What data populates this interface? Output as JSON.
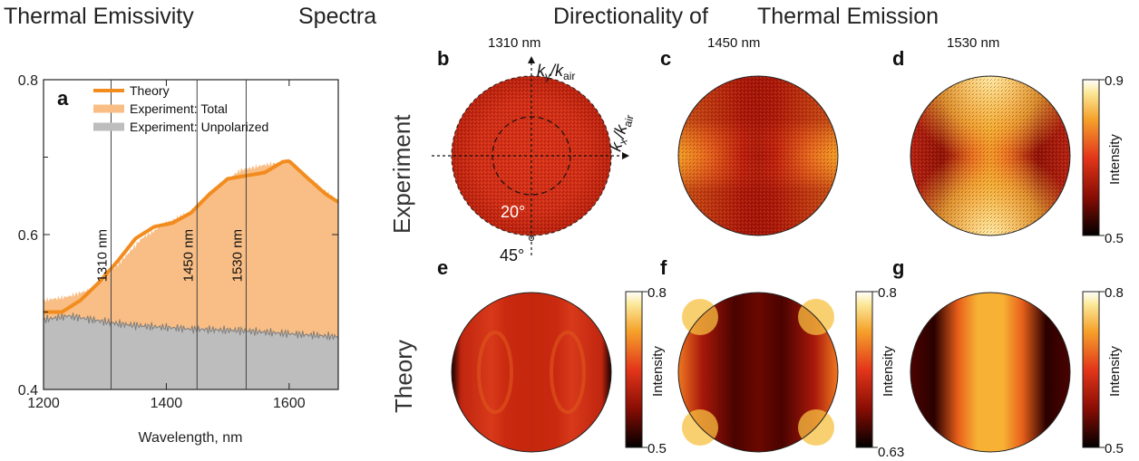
{
  "headers": {
    "left_a": "Thermal Emissivity",
    "left_b": "Spectra",
    "right_a": "Directionality of",
    "right_b": "Thermal Emission"
  },
  "row_labels": {
    "experiment": "Experiment",
    "theory": "Theory"
  },
  "panels": {
    "a": "a",
    "b": "b",
    "c": "c",
    "d": "d",
    "e": "e",
    "f": "f",
    "g": "g"
  },
  "wavelength_labels": {
    "b": "1310 nm",
    "c": "1450 nm",
    "d": "1530 nm"
  },
  "polar_annotations": {
    "ky": "k",
    "ky_sub": "y",
    "kx": "k",
    "kx_sub": "x",
    "over": "/k",
    "air": "air",
    "angle_inner": "20°",
    "angle_outer": "45°"
  },
  "colorbars": [
    {
      "id": "d",
      "max": "0.9",
      "min": "0.5",
      "label": "Intensity"
    },
    {
      "id": "e",
      "max": "0.8",
      "min": "0.5",
      "label": "Intensity"
    },
    {
      "id": "f",
      "max": "0.8",
      "min": "0.63",
      "label": "Intensity"
    },
    {
      "id": "g",
      "max": "0.8",
      "min": "0.5",
      "label": "Intensity"
    }
  ],
  "chart_data": {
    "type": "area",
    "xlabel": "Wavelength, nm",
    "ylabel": "",
    "xlim": [
      1200,
      1680
    ],
    "ylim": [
      0.4,
      0.8
    ],
    "x_ticks": [
      1200,
      1400,
      1600
    ],
    "y_ticks": [
      0.4,
      0.6,
      0.8
    ],
    "x_tick_labels": [
      "1200",
      "1400",
      "1600"
    ],
    "y_tick_labels": [
      "0.4",
      "0.6",
      "0.8"
    ],
    "grid": false,
    "legend_position": "top-left",
    "vertical_markers": [
      {
        "x": 1310,
        "label": "1310 nm"
      },
      {
        "x": 1450,
        "label": "1450 nm"
      },
      {
        "x": 1530,
        "label": "1530 nm"
      }
    ],
    "series": [
      {
        "name": "Theory",
        "color": "#f28c1e",
        "kind": "line",
        "x": [
          1200,
          1230,
          1260,
          1290,
          1320,
          1350,
          1380,
          1410,
          1440,
          1470,
          1500,
          1530,
          1560,
          1590,
          1600,
          1630,
          1660,
          1680
        ],
        "y": [
          0.5,
          0.5,
          0.515,
          0.538,
          0.565,
          0.595,
          0.61,
          0.615,
          0.628,
          0.652,
          0.672,
          0.676,
          0.68,
          0.694,
          0.695,
          0.673,
          0.652,
          0.642
        ]
      },
      {
        "name": "Experiment: Total",
        "color": "#f9be85",
        "kind": "area",
        "x": [
          1200,
          1240,
          1280,
          1320,
          1360,
          1400,
          1440,
          1480,
          1520,
          1560,
          1600,
          1640,
          1680
        ],
        "y": [
          0.515,
          0.52,
          0.53,
          0.56,
          0.595,
          0.615,
          0.63,
          0.66,
          0.683,
          0.69,
          0.695,
          0.668,
          0.643
        ]
      },
      {
        "name": "Experiment: Unpolarized",
        "color": "#bdbdbd",
        "kind": "area",
        "x": [
          1200,
          1240,
          1280,
          1320,
          1360,
          1400,
          1440,
          1480,
          1520,
          1560,
          1600,
          1640,
          1680
        ],
        "y": [
          0.49,
          0.495,
          0.49,
          0.485,
          0.482,
          0.48,
          0.478,
          0.477,
          0.476,
          0.474,
          0.472,
          0.47,
          0.468
        ]
      }
    ]
  }
}
